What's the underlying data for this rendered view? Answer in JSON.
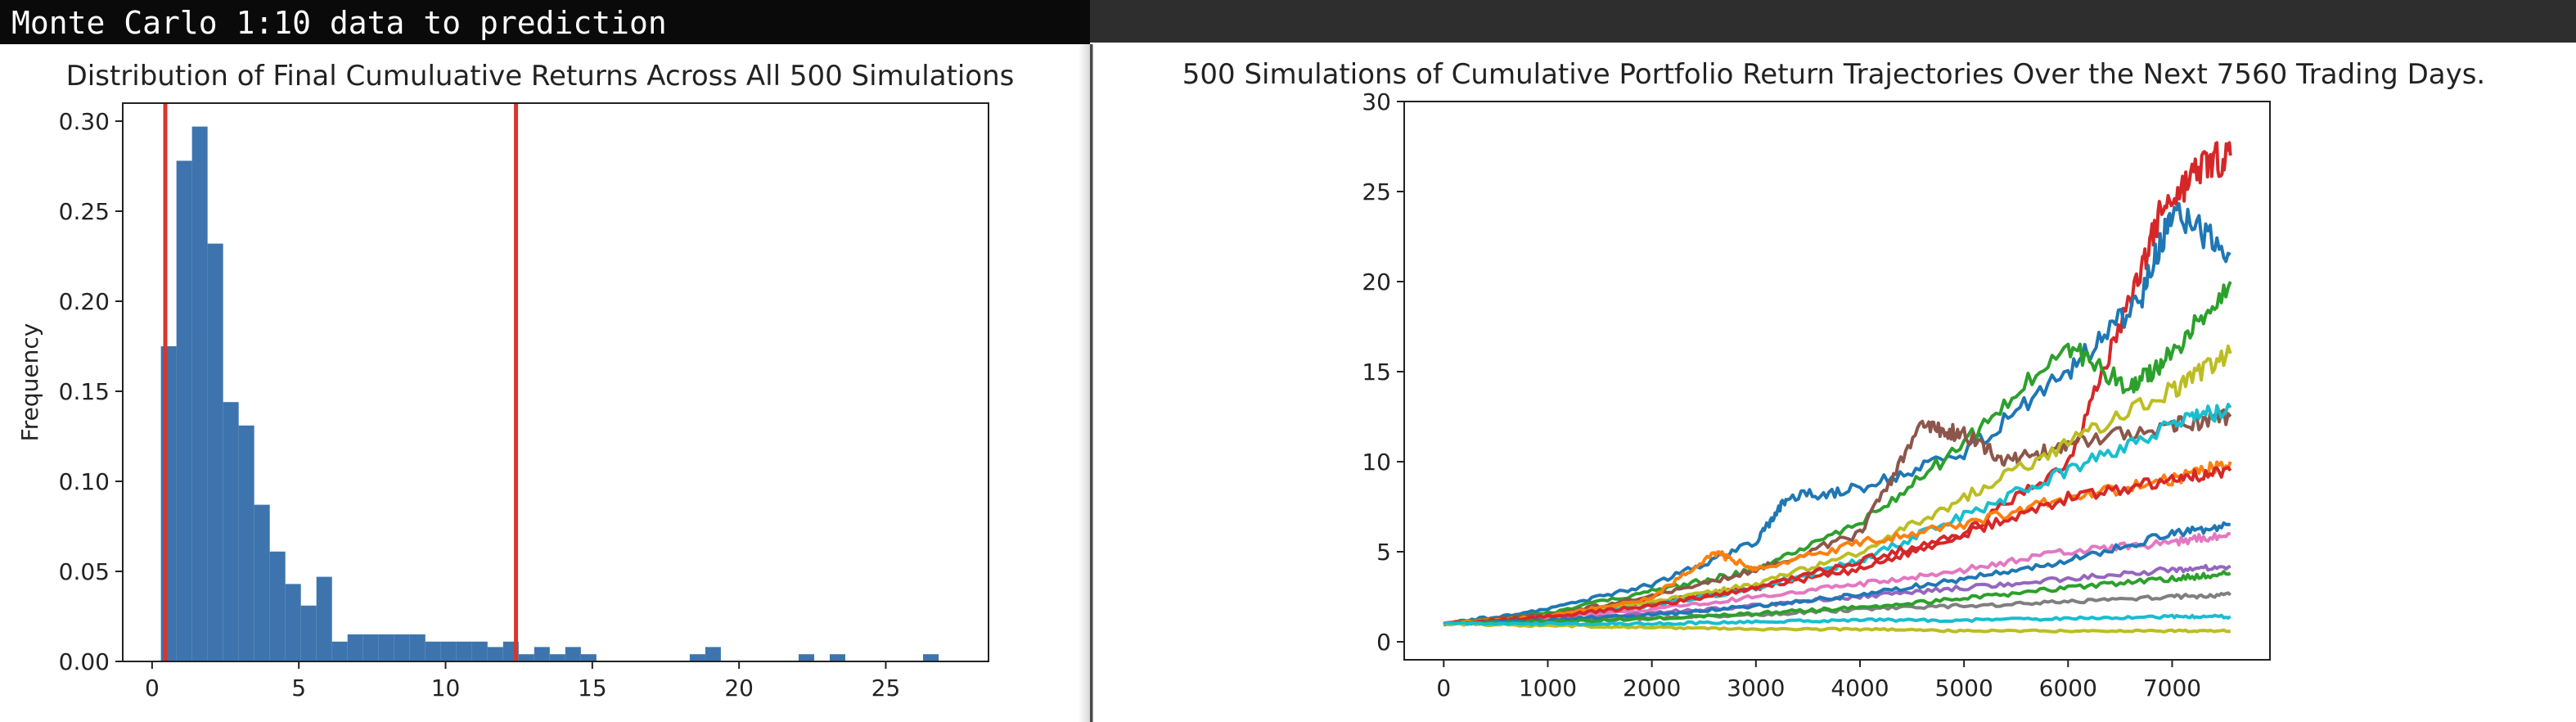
{
  "window": {
    "title": "Monte Carlo 1:10 data to prediction"
  },
  "colors": {
    "titlebar": "#0a0a0a",
    "bars": "#3d74ad",
    "ci_lines": "#d6372c"
  },
  "chart_data": [
    {
      "type": "bar",
      "subtype": "histogram",
      "title": "Distribution of Final Cumuluative Returns Across All 500 Simulations",
      "xlabel": "",
      "ylabel": "Frequency",
      "xlim": [
        -1.0,
        28.5
      ],
      "ylim": [
        0,
        0.31
      ],
      "xticks": [
        0,
        5,
        10,
        15,
        20,
        25
      ],
      "yticks": [
        "0.00",
        "0.05",
        "0.10",
        "0.15",
        "0.20",
        "0.25",
        "0.30"
      ],
      "bin_edges": [
        0.3,
        0.83,
        1.36,
        1.89,
        2.42,
        2.95,
        3.48,
        4.01,
        4.54,
        5.07,
        5.6,
        6.13,
        6.66,
        7.19,
        7.72,
        8.25,
        8.78,
        9.31,
        9.84,
        10.37,
        10.9,
        11.43,
        11.96,
        12.49,
        13.02,
        13.55,
        14.08,
        14.61,
        15.14,
        15.67,
        16.2,
        16.73,
        17.26,
        17.79,
        18.32,
        18.85,
        19.38,
        19.91,
        20.44,
        20.97,
        21.5,
        22.03,
        22.56,
        23.09,
        23.62,
        24.15,
        24.68,
        25.21,
        25.74,
        26.27,
        26.8,
        27.33
      ],
      "values": [
        0.175,
        0.278,
        0.297,
        0.232,
        0.144,
        0.131,
        0.087,
        0.061,
        0.043,
        0.031,
        0.047,
        0.011,
        0.015,
        0.015,
        0.015,
        0.015,
        0.015,
        0.011,
        0.011,
        0.011,
        0.011,
        0.008,
        0.011,
        0.004,
        0.008,
        0.004,
        0.008,
        0.004,
        0,
        0,
        0,
        0,
        0,
        0,
        0.004,
        0.008,
        0,
        0,
        0,
        0,
        0,
        0.004,
        0,
        0.004,
        0,
        0,
        0,
        0,
        0,
        0.004,
        0
      ],
      "vlines": [
        0.45,
        12.4
      ],
      "grid": false
    },
    {
      "type": "line",
      "title": "500 Simulations of Cumulative Portfolio Return Trajectories Over the Next 7560 Trading Days.",
      "xlabel": "",
      "ylabel": "",
      "xlim": [
        -380,
        7940
      ],
      "ylim": [
        -1.0,
        30
      ],
      "xticks": [
        0,
        1000,
        2000,
        3000,
        4000,
        5000,
        6000,
        7000
      ],
      "yticks": [
        0,
        5,
        10,
        15,
        20,
        25,
        30
      ],
      "num_simulations": 500,
      "trading_days": 7560,
      "highlighted_series": [
        {
          "color": "#d62728",
          "points": [
            [
              0,
              1
            ],
            [
              1000,
              1.5
            ],
            [
              2000,
              2.2
            ],
            [
              3000,
              3.0
            ],
            [
              4000,
              4.0
            ],
            [
              5000,
              6.0
            ],
            [
              6000,
              10.0
            ],
            [
              6600,
              19.0
            ],
            [
              6900,
              24.0
            ],
            [
              7300,
              26.5
            ],
            [
              7560,
              27.0
            ]
          ]
        },
        {
          "color": "#1f77b4",
          "points": [
            [
              0,
              1
            ],
            [
              1000,
              1.8
            ],
            [
              2000,
              3.2
            ],
            [
              3000,
              5.5
            ],
            [
              3300,
              8.0
            ],
            [
              4000,
              8.5
            ],
            [
              5000,
              10.5
            ],
            [
              6000,
              15.0
            ],
            [
              6700,
              19.0
            ],
            [
              7000,
              24.0
            ],
            [
              7560,
              21.5
            ]
          ]
        },
        {
          "color": "#2ca02c",
          "points": [
            [
              0,
              1
            ],
            [
              1000,
              1.6
            ],
            [
              2000,
              2.8
            ],
            [
              3000,
              4.0
            ],
            [
              4000,
              6.5
            ],
            [
              5000,
              11.0
            ],
            [
              6000,
              16.5
            ],
            [
              6600,
              14.0
            ],
            [
              7000,
              16.0
            ],
            [
              7560,
              20.0
            ]
          ]
        },
        {
          "color": "#8c564b",
          "points": [
            [
              0,
              1
            ],
            [
              1000,
              1.5
            ],
            [
              2000,
              2.5
            ],
            [
              3000,
              4.0
            ],
            [
              4000,
              6.0
            ],
            [
              4600,
              12.0
            ],
            [
              5000,
              11.5
            ],
            [
              5400,
              10.0
            ],
            [
              6000,
              11.0
            ],
            [
              7000,
              12.0
            ],
            [
              7560,
              12.5
            ]
          ]
        },
        {
          "color": "#bcbd22",
          "points": [
            [
              0,
              1
            ],
            [
              1000,
              1.4
            ],
            [
              2000,
              2.2
            ],
            [
              3000,
              3.2
            ],
            [
              4000,
              5.0
            ],
            [
              5000,
              8.0
            ],
            [
              6000,
              11.0
            ],
            [
              7000,
              14.0
            ],
            [
              7560,
              16.0
            ]
          ]
        },
        {
          "color": "#17becf",
          "points": [
            [
              0,
              1
            ],
            [
              1000,
              1.3
            ],
            [
              2000,
              2.0
            ],
            [
              3000,
              3.0
            ],
            [
              4000,
              4.5
            ],
            [
              5000,
              7.0
            ],
            [
              6000,
              9.5
            ],
            [
              7000,
              12.0
            ],
            [
              7560,
              13.0
            ]
          ]
        },
        {
          "color": "#e377c2",
          "points": [
            [
              0,
              1
            ],
            [
              1000,
              1.3
            ],
            [
              2000,
              1.8
            ],
            [
              3000,
              2.5
            ],
            [
              4000,
              3.2
            ],
            [
              5000,
              4.0
            ],
            [
              6000,
              5.0
            ],
            [
              7000,
              5.5
            ],
            [
              7560,
              6.0
            ]
          ]
        },
        {
          "color": "#9467bd",
          "points": [
            [
              0,
              1
            ],
            [
              1000,
              1.2
            ],
            [
              2000,
              1.6
            ],
            [
              3000,
              2.0
            ],
            [
              4000,
              2.5
            ],
            [
              5000,
              3.0
            ],
            [
              6000,
              3.5
            ],
            [
              7000,
              4.0
            ],
            [
              7560,
              4.2
            ]
          ]
        },
        {
          "color": "#ff7f0e",
          "points": [
            [
              0,
              1
            ],
            [
              1000,
              1.4
            ],
            [
              2000,
              2.4
            ],
            [
              2600,
              5.0
            ],
            [
              3000,
              4.0
            ],
            [
              4000,
              5.5
            ],
            [
              5000,
              6.5
            ],
            [
              6000,
              8.0
            ],
            [
              7000,
              9.0
            ],
            [
              7560,
              10.0
            ]
          ]
        },
        {
          "color": "#7f7f7f",
          "points": [
            [
              0,
              1
            ],
            [
              1000,
              1.1
            ],
            [
              2000,
              1.3
            ],
            [
              3000,
              1.5
            ],
            [
              4000,
              1.8
            ],
            [
              5000,
              2.0
            ],
            [
              6000,
              2.2
            ],
            [
              7000,
              2.5
            ],
            [
              7560,
              2.6
            ]
          ]
        },
        {
          "color": "#d62728",
          "points": [
            [
              0,
              1
            ],
            [
              1000,
              1.4
            ],
            [
              2000,
              2.0
            ],
            [
              3000,
              3.0
            ],
            [
              4000,
              4.5
            ],
            [
              5000,
              6.0
            ],
            [
              6000,
              8.0
            ],
            [
              7000,
              9.0
            ],
            [
              7560,
              9.5
            ]
          ]
        },
        {
          "color": "#1f77b4",
          "points": [
            [
              0,
              1
            ],
            [
              1000,
              1.2
            ],
            [
              2000,
              1.5
            ],
            [
              3000,
              2.0
            ],
            [
              4000,
              2.6
            ],
            [
              5000,
              3.5
            ],
            [
              6000,
              4.5
            ],
            [
              7000,
              6.0
            ],
            [
              7560,
              6.5
            ]
          ]
        },
        {
          "color": "#2ca02c",
          "points": [
            [
              0,
              1
            ],
            [
              1000,
              1.1
            ],
            [
              2000,
              1.3
            ],
            [
              3000,
              1.6
            ],
            [
              4000,
              1.9
            ],
            [
              5000,
              2.4
            ],
            [
              6000,
              3.0
            ],
            [
              7000,
              3.5
            ],
            [
              7560,
              3.8
            ]
          ]
        },
        {
          "color": "#bcbd22",
          "points": [
            [
              0,
              1
            ],
            [
              1000,
              0.9
            ],
            [
              2000,
              0.8
            ],
            [
              3000,
              0.7
            ],
            [
              4000,
              0.7
            ],
            [
              5000,
              0.6
            ],
            [
              6000,
              0.6
            ],
            [
              7000,
              0.6
            ],
            [
              7560,
              0.6
            ]
          ]
        },
        {
          "color": "#17becf",
          "points": [
            [
              0,
              1
            ],
            [
              1000,
              1.0
            ],
            [
              2000,
              1.0
            ],
            [
              3000,
              1.1
            ],
            [
              4000,
              1.2
            ],
            [
              5000,
              1.2
            ],
            [
              6000,
              1.3
            ],
            [
              7000,
              1.4
            ],
            [
              7560,
              1.4
            ]
          ]
        }
      ],
      "grid": false
    }
  ]
}
